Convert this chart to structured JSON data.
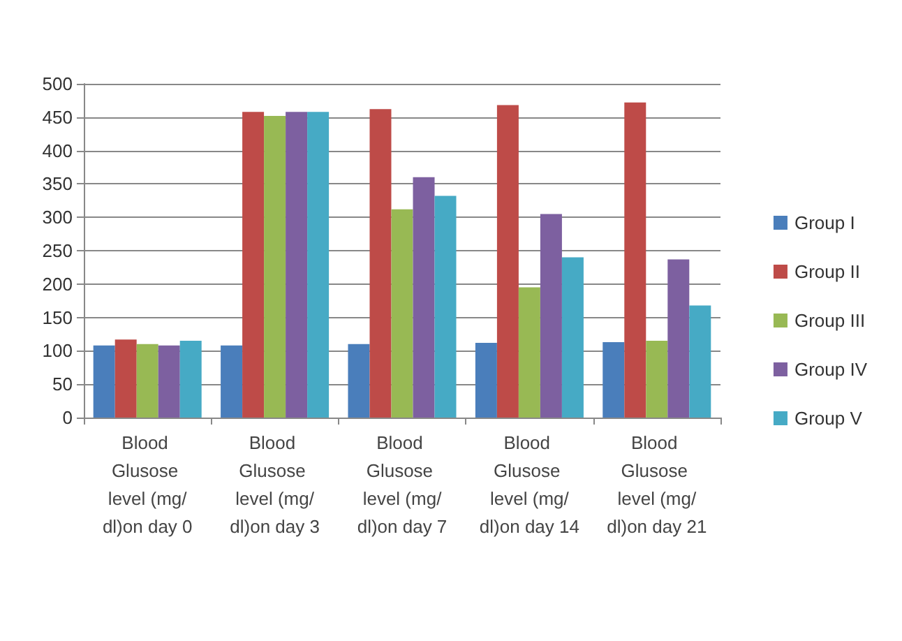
{
  "chart_data": {
    "type": "bar",
    "categories": [
      "Blood Glusose level (mg/dl)on day 0",
      "Blood Glusose level (mg/dl)on day 3",
      "Blood Glusose level (mg/dl)on day 7",
      "Blood Glusose level (mg/dl)on day 14",
      "Blood Glusose level (mg/dl)on day 21"
    ],
    "series": [
      {
        "name": "Group I",
        "color": "#4a7ebb",
        "values": [
          108,
          108,
          110,
          112,
          113
        ]
      },
      {
        "name": "Group II",
        "color": "#be4b48",
        "values": [
          117,
          458,
          462,
          468,
          472
        ]
      },
      {
        "name": "Group III",
        "color": "#98b954",
        "values": [
          110,
          452,
          312,
          195,
          115
        ]
      },
      {
        "name": "Group IV",
        "color": "#7d60a0",
        "values": [
          108,
          458,
          360,
          305,
          237
        ]
      },
      {
        "name": "Group V",
        "color": "#46aac5",
        "values": [
          115,
          458,
          332,
          240,
          168
        ]
      }
    ],
    "ylim": [
      0,
      500
    ],
    "yticks": [
      0,
      50,
      100,
      150,
      200,
      250,
      300,
      350,
      400,
      450,
      500
    ],
    "grid": "y",
    "legend": "right"
  }
}
